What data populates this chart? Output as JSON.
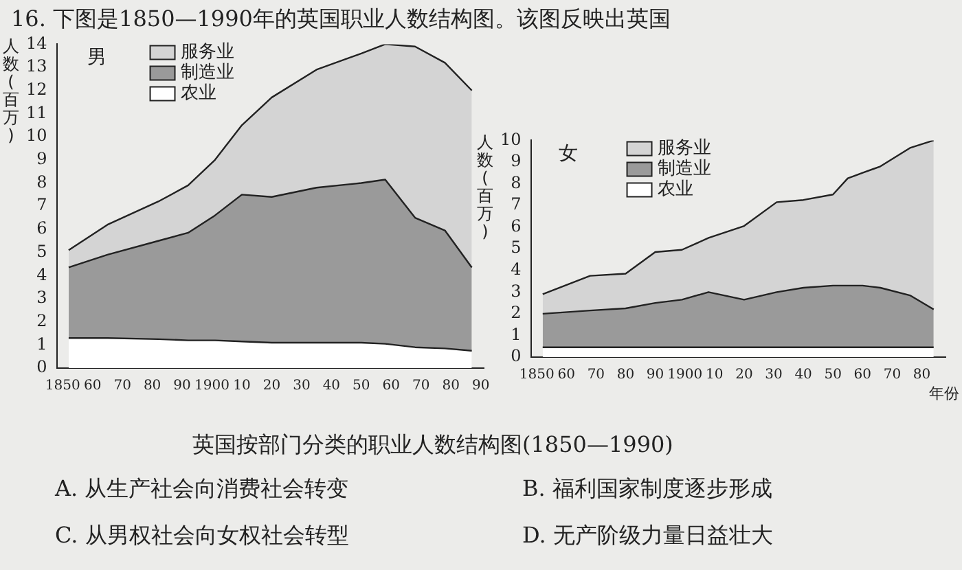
{
  "chart_data": [
    {
      "type": "area",
      "title": "男",
      "ylabel": "人数(百万)",
      "stacked": true,
      "legend": "top left",
      "marker": "none",
      "line_style": "solid",
      "grid": false,
      "xlim": [
        1848,
        1991
      ],
      "xticks": [
        {
          "value": 1850,
          "label": "1850"
        },
        {
          "value": 1860,
          "label": "60"
        },
        {
          "value": 1870,
          "label": "70"
        },
        {
          "value": 1880,
          "label": "80"
        },
        {
          "value": 1890,
          "label": "90"
        },
        {
          "value": 1900,
          "label": "1900"
        },
        {
          "value": 1910,
          "label": "10"
        },
        {
          "value": 1920,
          "label": "20"
        },
        {
          "value": 1930,
          "label": "30"
        },
        {
          "value": 1940,
          "label": "40"
        },
        {
          "value": 1950,
          "label": "50"
        },
        {
          "value": 1960,
          "label": "60"
        },
        {
          "value": 1970,
          "label": "70"
        },
        {
          "value": 1980,
          "label": "80"
        },
        {
          "value": 1990,
          "label": "90"
        }
      ],
      "ylim": [
        0,
        14
      ],
      "yticks": [
        0,
        1,
        2,
        3,
        4,
        5,
        6,
        7,
        8,
        9,
        10,
        11,
        12,
        13,
        14
      ],
      "x": [
        1852,
        1865,
        1882,
        1892,
        1901,
        1910,
        1920,
        1935,
        1950,
        1958,
        1968,
        1978,
        1987
      ],
      "series": [
        {
          "name": "农业",
          "color": "#ffffff",
          "values": [
            1.3,
            1.3,
            1.25,
            1.2,
            1.2,
            1.15,
            1.1,
            1.1,
            1.1,
            1.05,
            0.9,
            0.85,
            0.75
          ]
        },
        {
          "name": "制造业",
          "color": "#9a9a9a",
          "values": [
            3.05,
            3.6,
            4.25,
            4.65,
            5.4,
            6.35,
            6.3,
            6.7,
            6.9,
            7.1,
            5.6,
            5.1,
            3.6
          ]
        },
        {
          "name": "服务业",
          "color": "#d4d4d4",
          "values": [
            0.75,
            1.3,
            1.7,
            2.05,
            2.4,
            3.0,
            4.3,
            5.1,
            5.6,
            5.85,
            7.4,
            7.25,
            7.65
          ]
        }
      ],
      "annotations": [
        "16. 下图是1850—1990年的英国职业人数结构图。该图反映出英国",
        "英国按部门分类的职业人数结构图(1850—1990)",
        "A. 从生产社会向消费社会转变",
        "B. 福利国家制度逐步形成",
        "C. 从男权社会向女权社会转型",
        "D. 无产阶级力量日益壮大"
      ]
    },
    {
      "type": "area",
      "title": "女",
      "ylabel": "人数(百万)",
      "xlabel": "年份",
      "stacked": true,
      "legend": "top left",
      "marker": "none",
      "line_style": "solid",
      "grid": false,
      "xlim": [
        1848,
        1988
      ],
      "xticks": [
        {
          "value": 1850,
          "label": "1850"
        },
        {
          "value": 1860,
          "label": "60"
        },
        {
          "value": 1870,
          "label": "70"
        },
        {
          "value": 1880,
          "label": "80"
        },
        {
          "value": 1890,
          "label": "90"
        },
        {
          "value": 1900,
          "label": "1900"
        },
        {
          "value": 1910,
          "label": "10"
        },
        {
          "value": 1920,
          "label": "20"
        },
        {
          "value": 1930,
          "label": "30"
        },
        {
          "value": 1940,
          "label": "40"
        },
        {
          "value": 1950,
          "label": "50"
        },
        {
          "value": 1960,
          "label": "60"
        },
        {
          "value": 1970,
          "label": "70"
        },
        {
          "value": 1980,
          "label": "80"
        }
      ],
      "ylim": [
        0,
        10
      ],
      "yticks": [
        0,
        1,
        2,
        3,
        4,
        5,
        6,
        7,
        8,
        9,
        10
      ],
      "x": [
        1852,
        1868,
        1880,
        1890,
        1899,
        1908,
        1920,
        1931,
        1940,
        1950,
        1955,
        1960,
        1966,
        1976,
        1984
      ],
      "series": [
        {
          "name": "农业",
          "color": "#ffffff",
          "values": [
            0.45,
            0.45,
            0.45,
            0.45,
            0.45,
            0.45,
            0.45,
            0.45,
            0.45,
            0.45,
            0.45,
            0.45,
            0.45,
            0.45,
            0.45
          ]
        },
        {
          "name": "制造业",
          "color": "#9a9a9a",
          "values": [
            1.55,
            1.7,
            1.8,
            2.05,
            2.2,
            2.55,
            2.2,
            2.55,
            2.75,
            2.85,
            2.85,
            2.85,
            2.75,
            2.4,
            1.75
          ]
        },
        {
          "name": "服务业",
          "color": "#d4d4d4",
          "values": [
            0.9,
            1.6,
            1.6,
            2.35,
            2.3,
            2.5,
            3.4,
            4.15,
            4.05,
            4.2,
            4.95,
            5.2,
            5.6,
            6.8,
            7.8
          ]
        }
      ]
    }
  ]
}
